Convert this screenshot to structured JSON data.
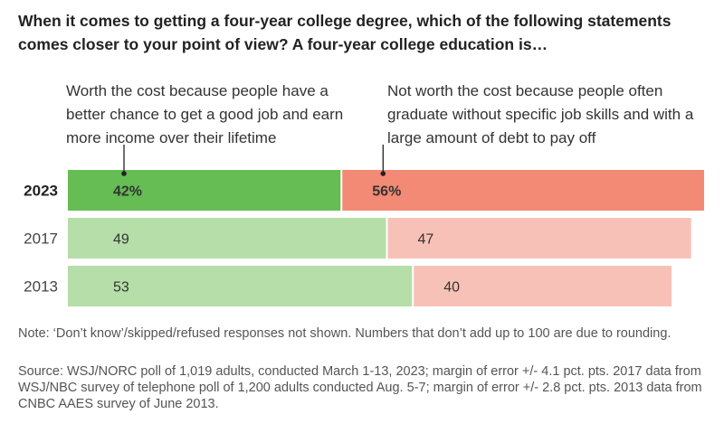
{
  "title": "When it comes to getting a four-year college degree, which of the following statements comes closer to your point of view? A four-year college education is…",
  "note": "Note: ‘Don’t know’/skipped/refused responses not shown. Numbers that don’t add up to 100 are due to rounding.",
  "source": "Source: WSJ/NORC poll of 1,019 adults, conducted March 1-13, 2023; margin of error +/- 4.1 pct. pts. 2017 data from WSJ/NBC survey of telephone poll of 1,200 adults conducted Aug. 5-7; margin of error +/- 2.8 pct. pts. 2013 data from CNBC AAES survey of June 2013.",
  "colors": {
    "worth_highlight": "#65bd53",
    "not_worth_highlight": "#f28a76",
    "worth": "#b5dea8",
    "not_worth": "#f8c1b8"
  },
  "chart_data": {
    "type": "bar",
    "orientation": "horizontal",
    "stacked": true,
    "categories": [
      "2023",
      "2017",
      "2013"
    ],
    "series": [
      {
        "name": "Worth the cost because people have a better chance to get a good job and earn more income over their lifetime",
        "values": [
          42,
          49,
          53
        ],
        "labels": [
          "42%",
          "49",
          "53"
        ]
      },
      {
        "name": "Not worth the cost because people often graduate without specific job skills and with a large amount of debt to pay off",
        "values": [
          56,
          47,
          40
        ],
        "labels": [
          "56%",
          "47",
          "40"
        ]
      }
    ],
    "xlim": [
      0,
      98
    ],
    "highlight_category": "2023",
    "grid": false,
    "legend": "top"
  }
}
